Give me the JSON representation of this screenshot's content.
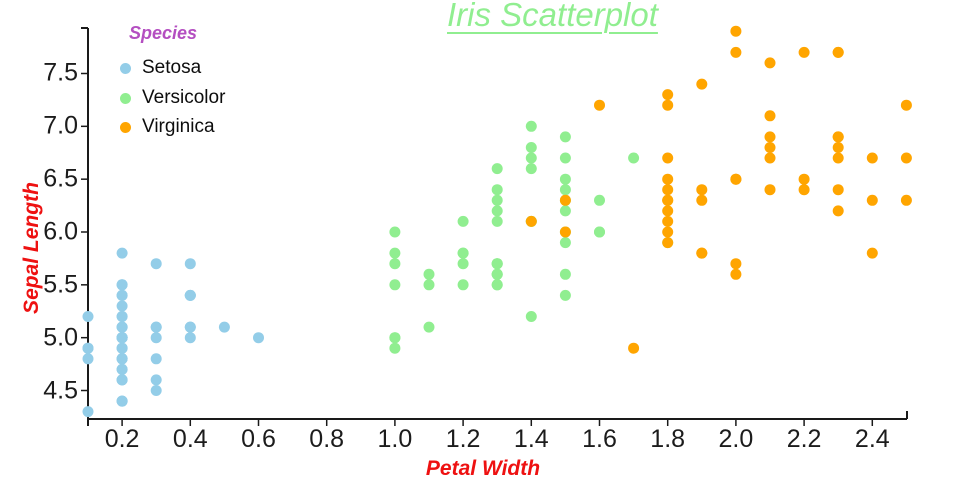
{
  "title": "Iris Scatterplot",
  "colors": {
    "title": "#90EE90",
    "axis_label": "#EE1111",
    "legend_title": "#B44EC1",
    "axis_line": "#1a1a1a",
    "tick_text": "#1c1c1c",
    "setosa": "#93CDE8",
    "versicolor": "#90EE90",
    "virginica": "#FFA500"
  },
  "legend": {
    "title": "Species",
    "items": [
      {
        "label": "Setosa",
        "color": "#93CDE8"
      },
      {
        "label": "Versicolor",
        "color": "#90EE90"
      },
      {
        "label": "Virginica",
        "color": "#FFA500"
      }
    ]
  },
  "chart_data": {
    "type": "scatter",
    "title": "Iris Scatterplot",
    "xlabel": "Petal Width",
    "ylabel": "Sepal Length",
    "xlim": [
      0.1,
      2.5
    ],
    "ylim": [
      4.23,
      7.93
    ],
    "x_ticks": [
      0.2,
      0.4,
      0.6,
      0.8,
      1.0,
      1.2,
      1.4,
      1.6,
      1.8,
      2.0,
      2.2,
      2.4
    ],
    "y_ticks": [
      4.5,
      5.0,
      5.5,
      6.0,
      6.5,
      7.0,
      7.5
    ],
    "grid": false,
    "legend_position": "top-left",
    "series": [
      {
        "name": "Setosa",
        "color": "#93CDE8",
        "points": [
          [
            0.2,
            5.1
          ],
          [
            0.2,
            4.9
          ],
          [
            0.2,
            4.7
          ],
          [
            0.2,
            4.6
          ],
          [
            0.2,
            5.0
          ],
          [
            0.4,
            5.4
          ],
          [
            0.3,
            4.6
          ],
          [
            0.2,
            5.0
          ],
          [
            0.2,
            4.4
          ],
          [
            0.1,
            4.9
          ],
          [
            0.2,
            5.4
          ],
          [
            0.2,
            4.8
          ],
          [
            0.1,
            4.8
          ],
          [
            0.1,
            4.3
          ],
          [
            0.2,
            5.8
          ],
          [
            0.4,
            5.7
          ],
          [
            0.4,
            5.4
          ],
          [
            0.3,
            5.1
          ],
          [
            0.3,
            5.7
          ],
          [
            0.3,
            5.1
          ],
          [
            0.2,
            5.4
          ],
          [
            0.4,
            5.1
          ],
          [
            0.2,
            4.6
          ],
          [
            0.5,
            5.1
          ],
          [
            0.2,
            4.8
          ],
          [
            0.2,
            5.0
          ],
          [
            0.4,
            5.0
          ],
          [
            0.2,
            5.2
          ],
          [
            0.2,
            5.2
          ],
          [
            0.2,
            4.7
          ],
          [
            0.2,
            4.8
          ],
          [
            0.4,
            5.4
          ],
          [
            0.1,
            5.2
          ],
          [
            0.2,
            5.5
          ],
          [
            0.2,
            4.9
          ],
          [
            0.2,
            5.0
          ],
          [
            0.2,
            5.5
          ],
          [
            0.1,
            4.9
          ],
          [
            0.2,
            4.4
          ],
          [
            0.2,
            5.1
          ],
          [
            0.3,
            5.0
          ],
          [
            0.3,
            4.5
          ],
          [
            0.2,
            4.4
          ],
          [
            0.6,
            5.0
          ],
          [
            0.4,
            5.1
          ],
          [
            0.3,
            4.8
          ],
          [
            0.2,
            5.1
          ],
          [
            0.2,
            4.6
          ],
          [
            0.2,
            5.3
          ],
          [
            0.2,
            5.0
          ]
        ]
      },
      {
        "name": "Versicolor",
        "color": "#90EE90",
        "points": [
          [
            1.4,
            7.0
          ],
          [
            1.5,
            6.4
          ],
          [
            1.5,
            6.9
          ],
          [
            1.3,
            5.5
          ],
          [
            1.5,
            6.5
          ],
          [
            1.3,
            5.7
          ],
          [
            1.6,
            6.3
          ],
          [
            1.0,
            4.9
          ],
          [
            1.3,
            6.6
          ],
          [
            1.4,
            5.2
          ],
          [
            1.0,
            5.0
          ],
          [
            1.5,
            5.9
          ],
          [
            1.0,
            6.0
          ],
          [
            1.4,
            6.1
          ],
          [
            1.3,
            5.6
          ],
          [
            1.4,
            6.7
          ],
          [
            1.5,
            5.6
          ],
          [
            1.0,
            5.8
          ],
          [
            1.5,
            6.2
          ],
          [
            1.1,
            5.6
          ],
          [
            1.8,
            5.9
          ],
          [
            1.3,
            6.1
          ],
          [
            1.5,
            6.3
          ],
          [
            1.2,
            6.1
          ],
          [
            1.3,
            6.4
          ],
          [
            1.4,
            6.6
          ],
          [
            1.4,
            6.8
          ],
          [
            1.7,
            6.7
          ],
          [
            1.5,
            6.0
          ],
          [
            1.0,
            5.7
          ],
          [
            1.1,
            5.5
          ],
          [
            1.0,
            5.5
          ],
          [
            1.2,
            5.8
          ],
          [
            1.6,
            6.0
          ],
          [
            1.5,
            5.4
          ],
          [
            1.6,
            6.0
          ],
          [
            1.5,
            6.7
          ],
          [
            1.3,
            6.3
          ],
          [
            1.3,
            5.6
          ],
          [
            1.3,
            5.5
          ],
          [
            1.2,
            5.5
          ],
          [
            1.4,
            6.1
          ],
          [
            1.2,
            5.8
          ],
          [
            1.0,
            5.0
          ],
          [
            1.3,
            5.6
          ],
          [
            1.2,
            5.7
          ],
          [
            1.3,
            5.7
          ],
          [
            1.3,
            6.2
          ],
          [
            1.1,
            5.1
          ],
          [
            1.3,
            5.7
          ]
        ]
      },
      {
        "name": "Virginica",
        "color": "#FFA500",
        "points": [
          [
            2.5,
            6.3
          ],
          [
            1.9,
            5.8
          ],
          [
            2.1,
            7.1
          ],
          [
            1.8,
            6.3
          ],
          [
            2.2,
            6.5
          ],
          [
            2.1,
            7.6
          ],
          [
            1.7,
            4.9
          ],
          [
            1.8,
            7.3
          ],
          [
            1.8,
            6.7
          ],
          [
            2.5,
            7.2
          ],
          [
            2.0,
            6.5
          ],
          [
            1.9,
            6.4
          ],
          [
            2.1,
            6.8
          ],
          [
            2.0,
            5.7
          ],
          [
            2.4,
            5.8
          ],
          [
            2.3,
            6.4
          ],
          [
            1.8,
            6.5
          ],
          [
            2.2,
            7.7
          ],
          [
            2.3,
            7.7
          ],
          [
            1.5,
            6.0
          ],
          [
            2.3,
            6.9
          ],
          [
            2.0,
            5.6
          ],
          [
            2.0,
            7.7
          ],
          [
            1.8,
            6.3
          ],
          [
            2.1,
            6.7
          ],
          [
            1.8,
            7.2
          ],
          [
            1.8,
            6.2
          ],
          [
            1.8,
            6.1
          ],
          [
            2.1,
            6.4
          ],
          [
            1.6,
            7.2
          ],
          [
            1.9,
            7.4
          ],
          [
            2.0,
            7.9
          ],
          [
            2.2,
            6.4
          ],
          [
            1.5,
            6.3
          ],
          [
            1.4,
            6.1
          ],
          [
            2.3,
            7.7
          ],
          [
            2.4,
            6.3
          ],
          [
            1.8,
            6.4
          ],
          [
            1.8,
            6.0
          ],
          [
            2.1,
            6.9
          ],
          [
            2.4,
            6.7
          ],
          [
            2.3,
            6.9
          ],
          [
            1.9,
            5.8
          ],
          [
            2.3,
            6.8
          ],
          [
            2.5,
            6.7
          ],
          [
            2.3,
            6.7
          ],
          [
            1.9,
            6.3
          ],
          [
            2.0,
            6.5
          ],
          [
            2.3,
            6.2
          ],
          [
            1.8,
            5.9
          ]
        ]
      }
    ]
  }
}
